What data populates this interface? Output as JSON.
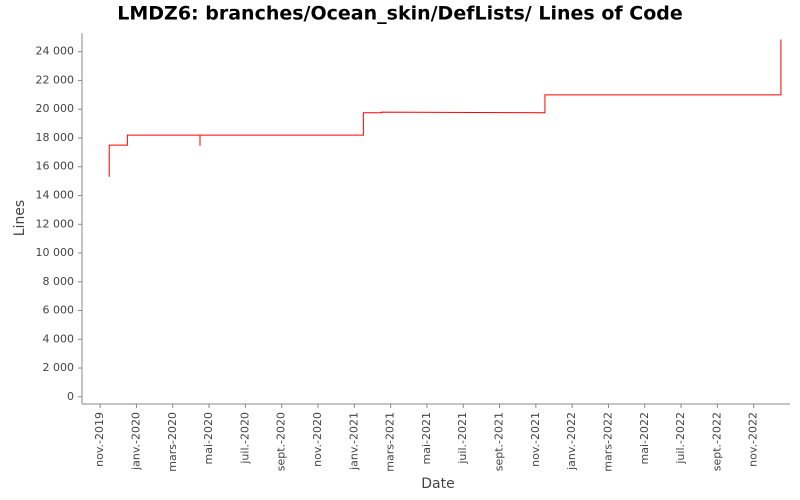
{
  "chart_data": {
    "type": "line",
    "title": "LMDZ6: branches/Ocean_skin/DefLists/ Lines of Code",
    "x_label": "Date",
    "y_label": "Lines",
    "x": [
      "2019-11",
      "2019-11",
      "2019-12",
      "2019-12",
      "2020-04",
      "2020-04",
      "2020-04",
      "2021-01",
      "2021-01",
      "2021-02",
      "2021-02",
      "2021-11",
      "2021-11",
      "2022-12",
      "2022-12"
    ],
    "series": [
      {
        "name": "Lines",
        "color": "#ff0000",
        "values": [
          15300,
          17500,
          17500,
          18200,
          18200,
          17450,
          18200,
          18200,
          19750,
          19750,
          19800,
          19750,
          21000,
          21000,
          24850
        ]
      }
    ],
    "xlim": [
      "2019-10",
      "2023-01"
    ],
    "xticks": [
      {
        "value": "2019-11",
        "label": "nov.-2019"
      },
      {
        "value": "2020-01",
        "label": "janv.-2020"
      },
      {
        "value": "2020-03",
        "label": "mars-2020"
      },
      {
        "value": "2020-05",
        "label": "mai-2020"
      },
      {
        "value": "2020-07",
        "label": "juil.-2020"
      },
      {
        "value": "2020-09",
        "label": "sept.-2020"
      },
      {
        "value": "2020-11",
        "label": "nov.-2020"
      },
      {
        "value": "2021-01",
        "label": "janv.-2021"
      },
      {
        "value": "2021-03",
        "label": "mars-2021"
      },
      {
        "value": "2021-05",
        "label": "mai-2021"
      },
      {
        "value": "2021-07",
        "label": "juil.-2021"
      },
      {
        "value": "2021-09",
        "label": "sept.-2021"
      },
      {
        "value": "2021-11",
        "label": "nov.-2021"
      },
      {
        "value": "2022-01",
        "label": "janv.-2022"
      },
      {
        "value": "2022-03",
        "label": "mars-2022"
      },
      {
        "value": "2022-05",
        "label": "mai-2022"
      },
      {
        "value": "2022-07",
        "label": "juil.-2022"
      },
      {
        "value": "2022-09",
        "label": "sept.-2022"
      },
      {
        "value": "2022-11",
        "label": "nov.-2022"
      }
    ],
    "ylim": [
      -500,
      25300
    ],
    "yticks": [
      0,
      {
        "value": 2000,
        "label": "2 000"
      },
      {
        "value": 4000,
        "label": "4 000"
      },
      {
        "value": 6000,
        "label": "6 000"
      },
      {
        "value": 8000,
        "label": "8 000"
      },
      {
        "value": 10000,
        "label": "10 000"
      },
      {
        "value": 12000,
        "label": "12 000"
      },
      {
        "value": 14000,
        "label": "14 000"
      },
      {
        "value": 16000,
        "label": "16 000"
      },
      {
        "value": 18000,
        "label": "18 000"
      },
      {
        "value": 20000,
        "label": "20 000"
      },
      {
        "value": 22000,
        "label": "22 000"
      },
      {
        "value": 24000,
        "label": "24 000"
      }
    ],
    "grid": false
  }
}
